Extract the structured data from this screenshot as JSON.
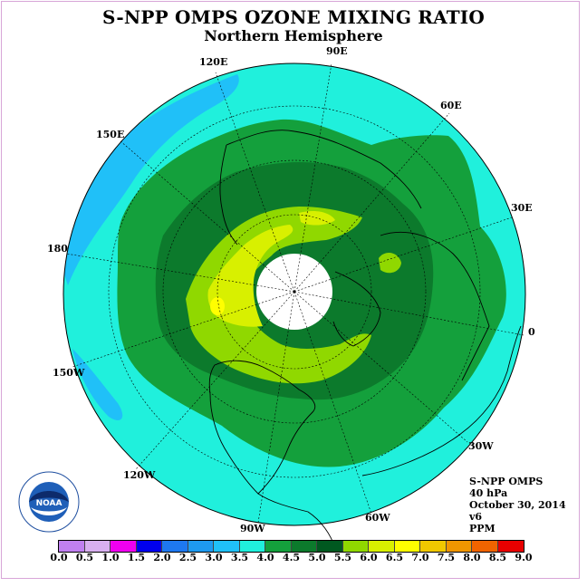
{
  "title": "S-NPP OMPS OZONE MIXING RATIO",
  "subtitle": "Northern Hemisphere",
  "longitude_labels": [
    "90E",
    "60E",
    "30E",
    "0",
    "30W",
    "60W",
    "90W",
    "120W",
    "150W",
    "180",
    "150E",
    "120E"
  ],
  "info": {
    "instrument": "S-NPP OMPS",
    "level": "40 hPa",
    "date": "October 30, 2014",
    "version": "v6",
    "units": "PPM"
  },
  "colorbar": {
    "ticks": [
      "0.0",
      "0.5",
      "1.0",
      "1.5",
      "2.0",
      "2.5",
      "3.0",
      "3.5",
      "4.0",
      "4.5",
      "5.0",
      "5.5",
      "6.0",
      "6.5",
      "7.0",
      "7.5",
      "8.0",
      "8.5",
      "9.0"
    ],
    "colors": [
      "#c080f0",
      "#d8b0f0",
      "#f000f0",
      "#0000ee",
      "#1e78f0",
      "#1e9af0",
      "#20c0f8",
      "#20f0dc",
      "#14a03c",
      "#0c7a2c",
      "#005820",
      "#90d800",
      "#d8f000",
      "#ffff00",
      "#f0c800",
      "#f09600",
      "#f06400",
      "#e80000",
      "#8b5a2b"
    ]
  },
  "field_levels": {
    "background": "3.5-4.0",
    "low_band": "3.0-3.5",
    "outer_ring": "4.0-4.5",
    "inner_ring": "4.5-5.0",
    "core": "5.0-5.5",
    "peak": "5.5-6.0",
    "max": "6.0-6.5",
    "polar_gap": "no data"
  }
}
